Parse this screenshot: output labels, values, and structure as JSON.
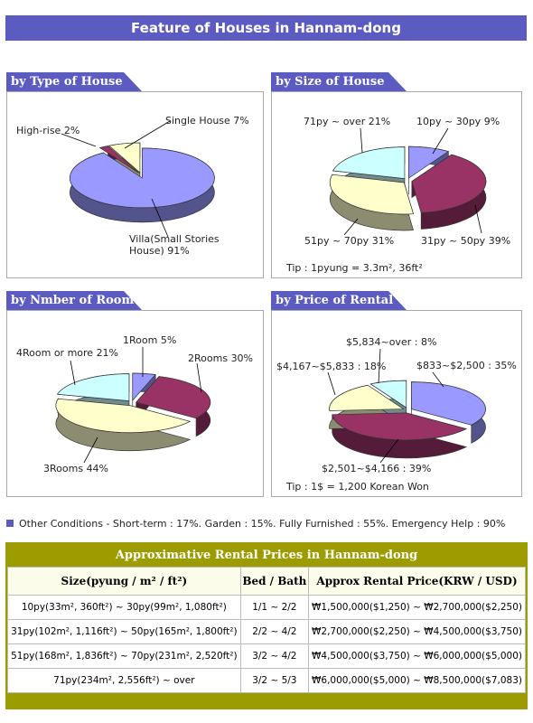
{
  "title": "Feature of Houses in Hannam-dong",
  "chart_data": [
    {
      "type": "pie",
      "title": "by Type of House",
      "categories": [
        "Villa(Small Stories House)",
        "High-rise",
        "Single House"
      ],
      "values": [
        91,
        2,
        7
      ],
      "value_labels": [
        "91%",
        "2%",
        "7%"
      ],
      "colors": [
        "#9999ff",
        "#993366",
        "#ffffcc"
      ]
    },
    {
      "type": "pie",
      "title": "by Size of House",
      "categories": [
        "10py ~ 30py",
        "31py ~ 50py",
        "51py ~ 70py",
        "71py ~ over"
      ],
      "values": [
        9,
        39,
        31,
        21
      ],
      "value_labels": [
        "9%",
        "39%",
        "31%",
        "21%"
      ],
      "colors": [
        "#9999ff",
        "#993366",
        "#ffffcc",
        "#ccffff"
      ],
      "note": "Tip : 1pyung = 3.3m², 36ft²"
    },
    {
      "type": "pie",
      "title": "by Nmber of Room",
      "categories": [
        "1Room",
        "2Rooms",
        "3Rooms",
        "4Room or more"
      ],
      "values": [
        5,
        30,
        44,
        21
      ],
      "value_labels": [
        "5%",
        "30%",
        "44%",
        "21%"
      ],
      "colors": [
        "#9999ff",
        "#993366",
        "#ffffcc",
        "#ccffff"
      ]
    },
    {
      "type": "pie",
      "title": "by Price of Rental",
      "categories": [
        "$833~$2,500",
        "$2,501~$4,166",
        "$4,167~$5,833",
        "$5,834~over"
      ],
      "values": [
        35,
        39,
        18,
        8
      ],
      "value_labels": [
        ": 35%",
        ": 39%",
        ": 18%",
        ": 8%"
      ],
      "colors": [
        "#9999ff",
        "#993366",
        "#ffffcc",
        "#ccffff"
      ],
      "note": "Tip : 1$ = 1,200 Korean Won"
    }
  ],
  "conditions": "Other Conditions - Short-term : 17%. Garden : 15%. Fully Furnished : 55%. Emergency Help : 90%",
  "table": {
    "title": "Approximative Rental Prices in Hannam-dong",
    "columns": [
      "Size(pyung / m² / ft²)",
      "Bed / Bath",
      "Approx Rental Price(KRW / USD)"
    ],
    "rows": [
      [
        "10py(33m², 360ft²) ~ 30py(99m², 1,080ft²)",
        "1/1 ~ 2/2",
        "₩1,500,000($1,250) ~ ₩2,700,000($2,250)"
      ],
      [
        "31py(102m², 1,116ft²) ~ 50py(165m², 1,800ft²)",
        "2/2 ~ 4/2",
        "₩2,700,000($2,250) ~ ₩4,500,000($3,750)"
      ],
      [
        "51py(168m², 1,836ft²) ~ 70py(231m², 2,520ft²)",
        "3/2 ~ 4/2",
        "₩4,500,000($3,750) ~ ₩6,000,000($5,000)"
      ],
      [
        "71py(234m², 2,556ft²) ~ over",
        "3/2 ~ 5/3",
        "₩6,000,000($5,000) ~ ₩8,500,000($7,083)"
      ]
    ]
  }
}
